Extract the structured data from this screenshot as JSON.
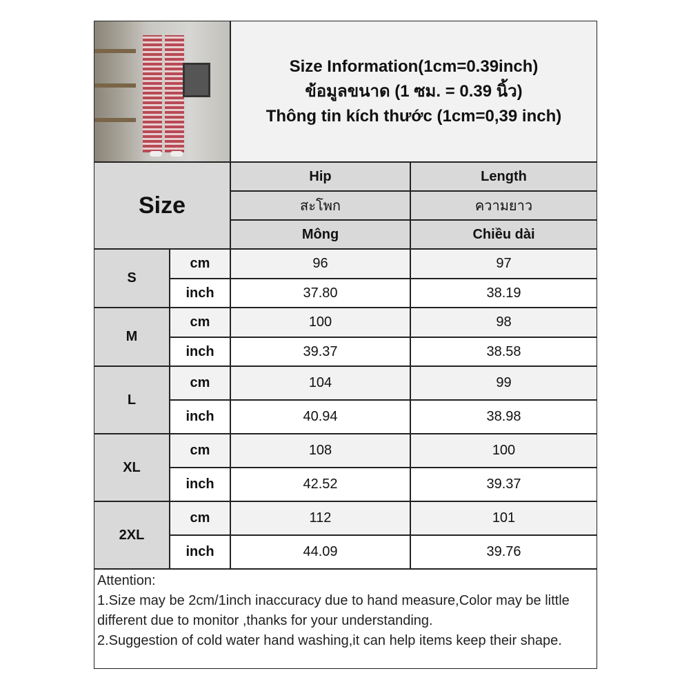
{
  "header": {
    "title_lines": [
      "Size Information(1cm=0.39inch)",
      "ข้อมูลขนาด (1 ซม. = 0.39 นิ้ว)",
      "Thông tin kích thước (1cm=0,39 inch)"
    ],
    "photo": "product-photo-plaid-pants"
  },
  "table": {
    "size_header": "Size",
    "columns": [
      {
        "en": "Hip",
        "th": "สะโพก",
        "vi": "Mông"
      },
      {
        "en": "Length",
        "th": "ความยาว",
        "vi": "Chiều dài"
      }
    ],
    "units": {
      "cm": "cm",
      "inch": "inch"
    },
    "rows": [
      {
        "size": "S",
        "cm": [
          "96",
          "97"
        ],
        "inch": [
          "37.80",
          "38.19"
        ]
      },
      {
        "size": "M",
        "cm": [
          "100",
          "98"
        ],
        "inch": [
          "39.37",
          "38.58"
        ]
      },
      {
        "size": "L",
        "cm": [
          "104",
          "99"
        ],
        "inch": [
          "40.94",
          "38.98"
        ]
      },
      {
        "size": "XL",
        "cm": [
          "108",
          "100"
        ],
        "inch": [
          "42.52",
          "39.37"
        ]
      },
      {
        "size": "2XL",
        "cm": [
          "112",
          "101"
        ],
        "inch": [
          "44.09",
          "39.76"
        ]
      }
    ]
  },
  "notes": {
    "heading": "Attention:",
    "items": [
      "1.Size may be 2cm/1inch inaccuracy due to hand measure,Color may be little different due to monitor ,thanks for your understanding.",
      "2.Suggestion of cold water hand washing,it can help items keep their shape."
    ]
  }
}
